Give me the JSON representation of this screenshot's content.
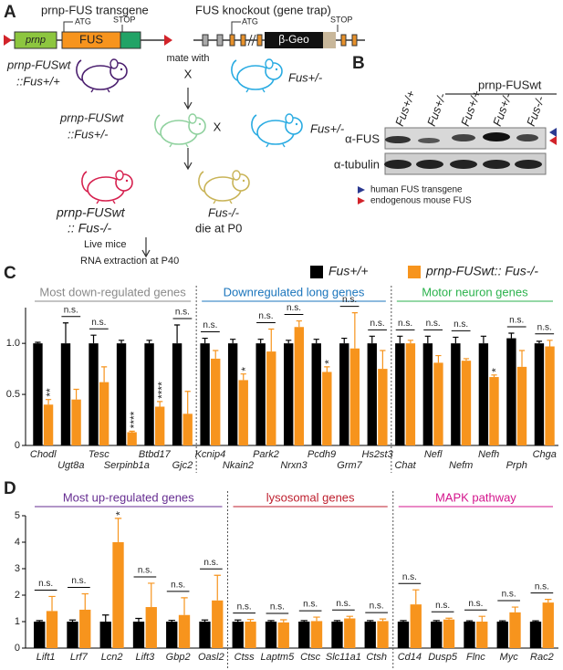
{
  "panel_labels": [
    "A",
    "B",
    "C",
    "D"
  ],
  "panel_a": {
    "transgene_title": "prnp-FUS transgene",
    "knockout_title": "FUS knockout (gene trap)",
    "prnp_box": "prnp",
    "fus_box": "FUS",
    "atg_1": "ATG",
    "stop_1": "STOP",
    "atg_2": "ATG",
    "geo_box": "β-Geo",
    "stop_2": "STOP",
    "parent_1": [
      "prnp-FUSwt",
      "::Fus+/+"
    ],
    "mate_with": "mate with",
    "cross_1": "X",
    "parent_2": "Fus+/-",
    "f1": [
      "prnp-FUSwt",
      "::Fus+/-"
    ],
    "cross_2": "X",
    "parent_3": "Fus+/-",
    "offspring_1": [
      "prnp-FUSwt",
      ":: Fus-/-"
    ],
    "offspring_2": "Fus-/-",
    "offspring_2_note": "die at P0",
    "live_mice": "Live mice",
    "rna": "RNA extraction at P40"
  },
  "panel_b": {
    "lanes": [
      "Fus+/+",
      "Fus+/-",
      "Fus+/+",
      "Fus+/-",
      "Fus-/-"
    ],
    "group_label": "prnp-FUSwt",
    "rows": [
      "α-FUS",
      "α-tubulin"
    ],
    "legend": [
      {
        "label": "human FUS transgene",
        "color": "#2b3990"
      },
      {
        "label": "endogenous mouse FUS",
        "color": "#d2232a"
      }
    ]
  },
  "chart_data": [
    {
      "type": "bar",
      "groups": [
        {
          "name": "Most down-regulated genes",
          "color": "#8a8a8a",
          "categories": [
            "Chodl",
            "Ugt8a",
            "Tesc",
            "Serpinb1a",
            "Btbd17",
            "Gjc2"
          ]
        },
        {
          "name": "Downregulated long genes",
          "color": "#1b75bc",
          "categories": [
            "Kcnip4",
            "Nkain2",
            "Park2",
            "Nrxn3",
            "Pcdh9",
            "Grm7",
            "Hs2st3"
          ]
        },
        {
          "name": "Motor neuron genes",
          "color": "#2bb24c",
          "categories": [
            "Chat",
            "Nefl",
            "Nefm",
            "Nefh",
            "Prph",
            "Chga"
          ]
        }
      ],
      "series": [
        {
          "name": "Fus+/+",
          "color": "#000000",
          "values": [
            1,
            1,
            1,
            1,
            1,
            1,
            1,
            1,
            1,
            1,
            1,
            1,
            1,
            1,
            1,
            1,
            1,
            1.05,
            1
          ],
          "errors": [
            0.01,
            0.2,
            0.08,
            0.03,
            0.03,
            0.18,
            0.05,
            0.04,
            0.04,
            0.03,
            0.04,
            0.05,
            0.07,
            0.07,
            0.07,
            0.06,
            0.07,
            0.05,
            0.02
          ]
        },
        {
          "name": "prnp-FUSwt:: Fus-/-",
          "color": "#f7941d",
          "values": [
            0.4,
            0.45,
            0.62,
            0.13,
            0.38,
            0.31,
            0.85,
            0.64,
            0.92,
            1.16,
            0.72,
            0.95,
            0.75,
            1,
            0.81,
            0.83,
            0.67,
            0.77,
            0.97
          ],
          "errors": [
            0.05,
            0.1,
            0.15,
            0.01,
            0.05,
            0.22,
            0.08,
            0.06,
            0.22,
            0.06,
            0.05,
            0.35,
            0.18,
            0.03,
            0.07,
            0.02,
            0.02,
            0.16,
            0.06
          ]
        }
      ],
      "significance": [
        "**",
        "n.s.",
        "n.s.",
        "****",
        "****",
        "n.s.",
        "n.s.",
        "*",
        "n.s.",
        "n.s.",
        "*",
        "n.s.",
        "n.s.",
        "n.s.",
        "n.s.",
        "n.s.",
        "*",
        "n.s.",
        "n.s."
      ],
      "ylim": [
        0,
        1.35
      ],
      "yticks": [
        0,
        0.5,
        {
          "value": 1,
          "label": "1.0"
        }
      ],
      "legend": "top-right"
    },
    {
      "type": "bar",
      "groups": [
        {
          "name": "Most up-regulated genes",
          "color": "#662d91",
          "categories": [
            "Lift1",
            "Lrf7",
            "Lcn2",
            "Lift3",
            "Gbp2",
            "Oasl2"
          ]
        },
        {
          "name": "lysosomal genes",
          "color": "#be1e2d",
          "categories": [
            "Ctss",
            "Laptm5",
            "Ctsc",
            "Slc11a1",
            "Ctsh"
          ]
        },
        {
          "name": "MAPK pathway",
          "color": "#d4148c",
          "categories": [
            "Cd14",
            "Dusp5",
            "Flnc",
            "Myc",
            "Rac2"
          ]
        }
      ],
      "series": [
        {
          "name": "Fus+/+",
          "color": "#000000",
          "values": [
            1,
            1,
            1,
            1,
            1,
            1,
            1,
            1,
            1,
            1,
            1,
            1,
            1,
            1,
            1,
            1
          ],
          "errors": [
            0.04,
            0.06,
            0.25,
            0.12,
            0.05,
            0.06,
            0.06,
            0.04,
            0.04,
            0.04,
            0.04,
            0.04,
            0.04,
            0.03,
            0.03,
            0.03
          ]
        },
        {
          "name": "prnp-FUSwt:: Fus-/-",
          "color": "#f7941d",
          "values": [
            1.4,
            1.45,
            4,
            1.55,
            1.25,
            1.8,
            1,
            0.97,
            1.02,
            1.12,
            1.02,
            1.65,
            1.08,
            1,
            1.35,
            1.72
          ],
          "errors": [
            0.55,
            0.6,
            0.9,
            0.9,
            0.65,
            0.95,
            0.08,
            0.1,
            0.15,
            0.08,
            0.08,
            0.55,
            0.05,
            0.2,
            0.2,
            0.12
          ]
        }
      ],
      "significance": [
        "n.s.",
        "n.s.",
        "*",
        "n.s.",
        "n.s.",
        "n.s.",
        "n.s.",
        "n.s.",
        "n.s.",
        "n.s.",
        "n.s.",
        "n.s.",
        "n.s.",
        "n.s.",
        "n.s.",
        "n.s."
      ],
      "ylim": [
        0,
        5
      ],
      "yticks": [
        0,
        1,
        2,
        3,
        4,
        5
      ]
    }
  ]
}
